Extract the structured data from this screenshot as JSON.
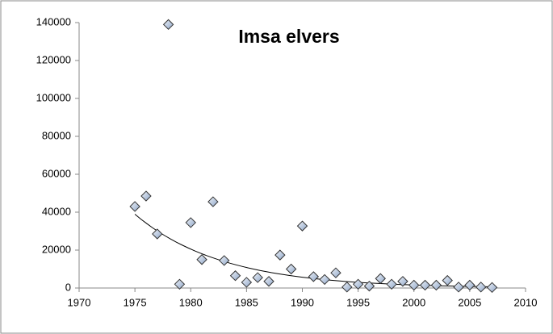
{
  "chart_data": {
    "type": "scatter",
    "title": "Imsa elvers",
    "x": [
      1975,
      1976,
      1977,
      1978,
      1979,
      1980,
      1981,
      1982,
      1983,
      1984,
      1985,
      1986,
      1987,
      1988,
      1989,
      1990,
      1991,
      1992,
      1993,
      1994,
      1995,
      1996,
      1997,
      1998,
      1999,
      2000,
      2001,
      2002,
      2003,
      2004,
      2005,
      2006,
      2007
    ],
    "values": [
      43000,
      48500,
      28500,
      139000,
      2000,
      34500,
      15000,
      45500,
      14500,
      6500,
      3000,
      5500,
      3500,
      17400,
      10000,
      32700,
      6000,
      4500,
      8000,
      500,
      2000,
      1000,
      5000,
      2000,
      3500,
      1500,
      1500,
      1500,
      4000,
      500,
      1500,
      500,
      300
    ],
    "color": "#b8c8e0",
    "trendline": "exponential",
    "xlim": [
      1970,
      2010
    ],
    "xticks": [
      1970,
      1975,
      1980,
      1985,
      1990,
      1995,
      2000,
      2005,
      2010
    ],
    "ylim": [
      0,
      140000
    ],
    "yticks": [
      0,
      20000,
      40000,
      60000,
      80000,
      100000,
      120000,
      140000
    ]
  }
}
